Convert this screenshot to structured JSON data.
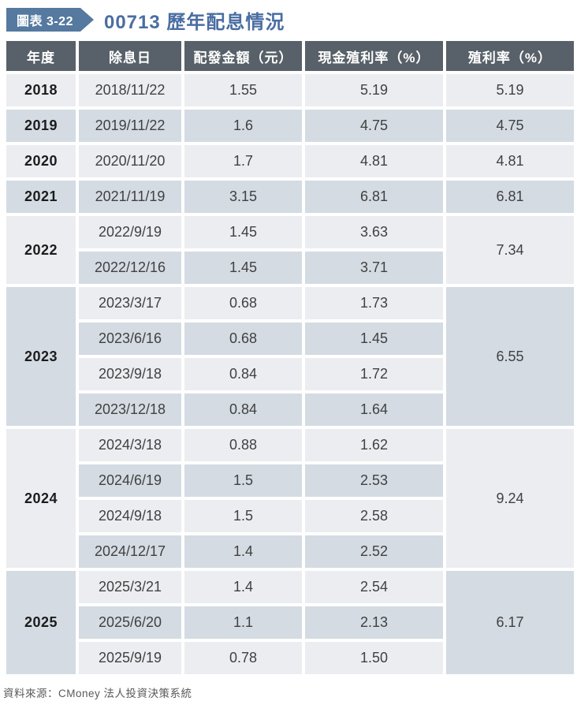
{
  "figure": {
    "badge_label": "圖表 3-22",
    "title": "00713 歷年配息情況"
  },
  "table": {
    "columns": [
      "年度",
      "除息日",
      "配發金額（元）",
      "現金殖利率（%）",
      "殖利率（%）"
    ],
    "groups": [
      {
        "year": "2018",
        "annual_yield": "5.19",
        "rows": [
          {
            "date": "2018/11/22",
            "amount": "1.55",
            "cash_yield": "5.19"
          }
        ]
      },
      {
        "year": "2019",
        "annual_yield": "4.75",
        "rows": [
          {
            "date": "2019/11/22",
            "amount": "1.6",
            "cash_yield": "4.75"
          }
        ]
      },
      {
        "year": "2020",
        "annual_yield": "4.81",
        "rows": [
          {
            "date": "2020/11/20",
            "amount": "1.7",
            "cash_yield": "4.81"
          }
        ]
      },
      {
        "year": "2021",
        "annual_yield": "6.81",
        "rows": [
          {
            "date": "2021/11/19",
            "amount": "3.15",
            "cash_yield": "6.81"
          }
        ]
      },
      {
        "year": "2022",
        "annual_yield": "7.34",
        "rows": [
          {
            "date": "2022/9/19",
            "amount": "1.45",
            "cash_yield": "3.63"
          },
          {
            "date": "2022/12/16",
            "amount": "1.45",
            "cash_yield": "3.71"
          }
        ]
      },
      {
        "year": "2023",
        "annual_yield": "6.55",
        "rows": [
          {
            "date": "2023/3/17",
            "amount": "0.68",
            "cash_yield": "1.73"
          },
          {
            "date": "2023/6/16",
            "amount": "0.68",
            "cash_yield": "1.45"
          },
          {
            "date": "2023/9/18",
            "amount": "0.84",
            "cash_yield": "1.72"
          },
          {
            "date": "2023/12/18",
            "amount": "0.84",
            "cash_yield": "1.64"
          }
        ]
      },
      {
        "year": "2024",
        "annual_yield": "9.24",
        "rows": [
          {
            "date": "2024/3/18",
            "amount": "0.88",
            "cash_yield": "1.62"
          },
          {
            "date": "2024/6/19",
            "amount": "1.5",
            "cash_yield": "2.53"
          },
          {
            "date": "2024/9/18",
            "amount": "1.5",
            "cash_yield": "2.58"
          },
          {
            "date": "2024/12/17",
            "amount": "1.4",
            "cash_yield": "2.52"
          }
        ]
      },
      {
        "year": "2025",
        "annual_yield": "6.17",
        "rows": [
          {
            "date": "2025/3/21",
            "amount": "1.4",
            "cash_yield": "2.54"
          },
          {
            "date": "2025/6/20",
            "amount": "1.1",
            "cash_yield": "2.13"
          },
          {
            "date": "2025/9/19",
            "amount": "0.78",
            "cash_yield": "1.50"
          }
        ]
      }
    ]
  },
  "footer": {
    "source": "資料來源：CMoney 法人投資決策系統"
  },
  "colors": {
    "badge_blue": "#55799f",
    "title_blue": "#4a6da2",
    "header_bg": "#586169",
    "row_light": "#ecedf1",
    "row_dark": "#d4dbe3"
  }
}
